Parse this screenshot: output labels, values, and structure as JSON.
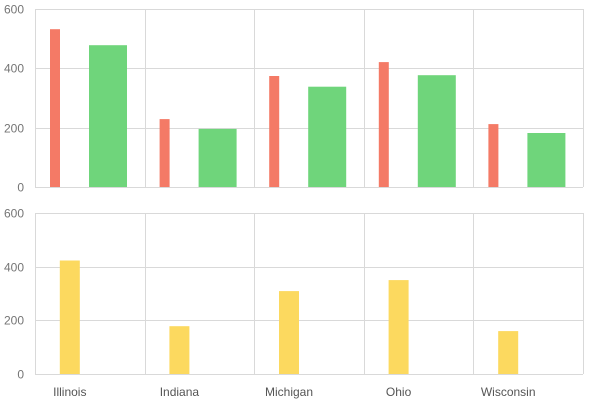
{
  "chart_data": [
    {
      "type": "bar",
      "categories": [
        "Illinois",
        "Indiana",
        "Michigan",
        "Ohio",
        "Wisconsin"
      ],
      "ylim": [
        0,
        600
      ],
      "yticks": [
        0,
        200,
        400,
        600
      ],
      "grid": true,
      "series": [
        {
          "color": "#f47a66",
          "values": [
            532,
            229,
            374,
            421,
            212
          ]
        },
        {
          "color": "#6fd57b",
          "values": [
            478,
            196,
            338,
            377,
            182
          ]
        }
      ]
    },
    {
      "type": "bar",
      "categories": [
        "Illinois",
        "Indiana",
        "Michigan",
        "Ohio",
        "Wisconsin"
      ],
      "ylim": [
        0,
        600
      ],
      "yticks": [
        0,
        200,
        400,
        600
      ],
      "grid": true,
      "series": [
        {
          "color": "#fcd95f",
          "values": [
            423,
            178,
            309,
            350,
            160
          ]
        }
      ]
    }
  ]
}
